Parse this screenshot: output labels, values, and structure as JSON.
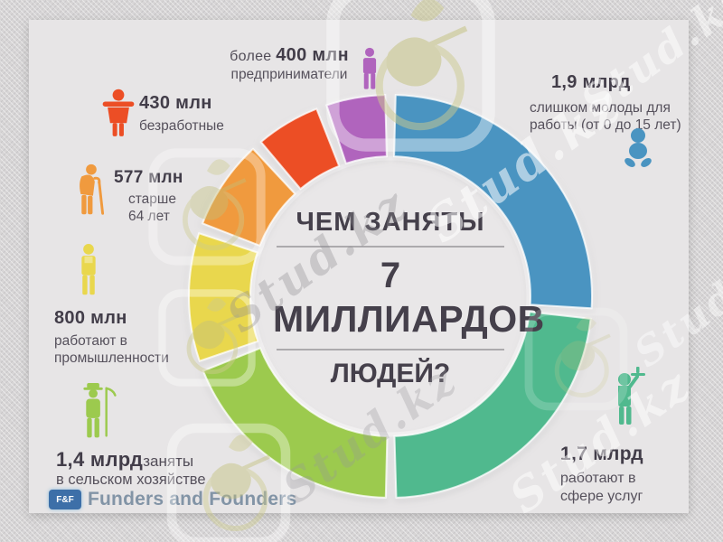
{
  "title": {
    "line1": "ЧЕМ ЗАНЯТЫ",
    "line2": "7",
    "line3": "МИЛЛИАРДОВ",
    "line4": "ЛЮДЕЙ?"
  },
  "chart_data": {
    "type": "pie",
    "donut": true,
    "title": "ЧЕМ ЗАНЯТЫ 7 МИЛЛИАРДОВ ЛЮДЕЙ?",
    "start_angle_deg": 0,
    "clockwise": true,
    "gap_deg": 3,
    "segments": [
      {
        "id": "young",
        "value_billions": 1.9,
        "color": "#4a94c1",
        "icon": "baby-icon",
        "callout": {
          "value": "1,9 млрд",
          "line1": "слишком молоды для",
          "line2": "работы (от 0 до 15 лет)"
        }
      },
      {
        "id": "services",
        "value_billions": 1.7,
        "color": "#50b98e",
        "icon": "waiter-icon",
        "callout": {
          "value": "1,7 млрд",
          "line1": "работают в",
          "line2": "сфере услуг"
        }
      },
      {
        "id": "agriculture",
        "value_billions": 1.4,
        "color": "#9cca4e",
        "icon": "farmer-icon",
        "callout": {
          "value": "1,4 млрд",
          "suffix": "заняты",
          "line1": "в сельском хозяйстве"
        }
      },
      {
        "id": "industry",
        "value_billions": 0.8,
        "color": "#e9d74d",
        "icon": "worker-icon",
        "callout": {
          "value": "800 млн",
          "line1": "работают в",
          "line2": "промышленности"
        }
      },
      {
        "id": "elderly",
        "value_billions": 0.577,
        "color": "#f09a3e",
        "icon": "elderly-icon",
        "callout": {
          "value": "577 млн",
          "line1": "старше",
          "line2": "64 лет"
        }
      },
      {
        "id": "unemployed",
        "value_billions": 0.43,
        "color": "#ec4e25",
        "icon": "unemployed-icon",
        "callout": {
          "value": "430 млн",
          "line1": "безработные"
        }
      },
      {
        "id": "entrepreneurs",
        "value_billions": 0.4,
        "color": "#b064bd",
        "icon": "entrepreneur-icon",
        "callout": {
          "prefix": "более ",
          "value": "400 млн",
          "line1": "предприниматели"
        }
      }
    ]
  },
  "footer": {
    "badge": "F&F",
    "brand": "Funders and Founders"
  },
  "watermark": {
    "text": "Stud.kz"
  }
}
